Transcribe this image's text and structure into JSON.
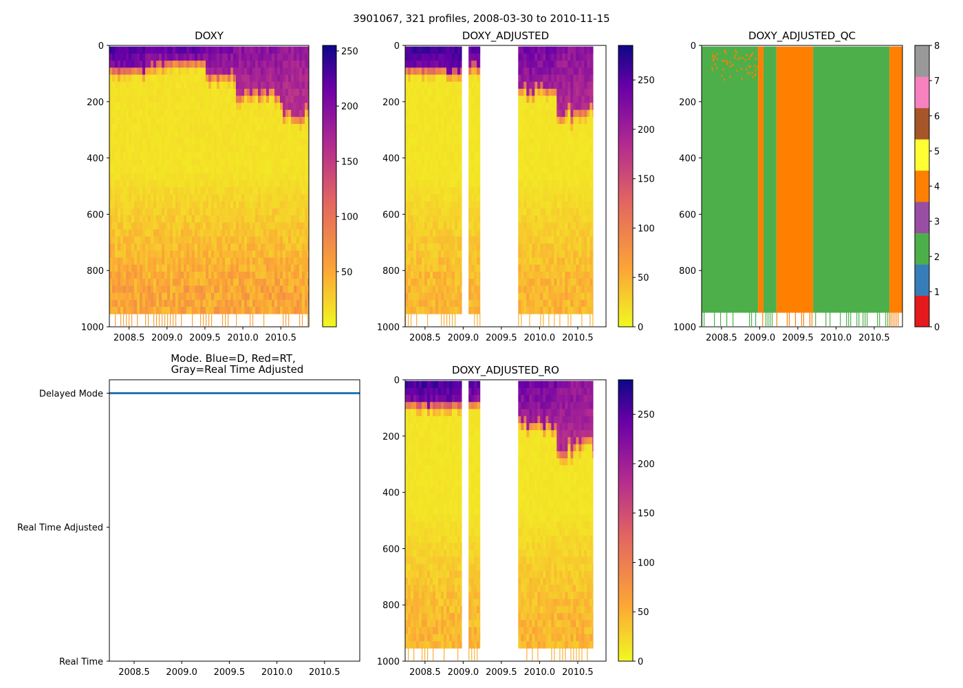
{
  "figure_title": "3901067, 321 profiles, 2008-03-30 to 2010-11-15",
  "colors": {
    "plasma": [
      "#f0f921",
      "#fca636",
      "#e16462",
      "#b12a90",
      "#6a00a8",
      "#0d0887"
    ],
    "qc": [
      "#e41a1c",
      "#377eb8",
      "#4daf4a",
      "#984ea3",
      "#ff7f00",
      "#ffff33",
      "#a65628",
      "#f781bf",
      "#999999"
    ],
    "mode_line": "#1f77b4",
    "frame": "#000000"
  },
  "chart_data": [
    {
      "id": "doxy",
      "type": "heatmap",
      "title": "DOXY",
      "x_ticks": [
        "2008.5",
        "2009.0",
        "2009.5",
        "2010.0",
        "2010.5"
      ],
      "x_tick_values": [
        2008.5,
        2009.0,
        2009.5,
        2010.0,
        2010.5
      ],
      "xlim": [
        2008.24,
        2010.87
      ],
      "y_ticks": [
        "0",
        "200",
        "400",
        "600",
        "800",
        "1000"
      ],
      "ylim": [
        1000,
        0
      ],
      "colorbar_ticks": [
        "50",
        "100",
        "150",
        "200",
        "250"
      ],
      "colorbar_values": [
        50,
        100,
        150,
        200,
        250
      ],
      "clim": [
        0,
        255
      ],
      "data_segments": [
        [
          2008.24,
          2010.87
        ]
      ],
      "surface_layer": [
        [
          2008.24,
          2008.7,
          70,
          220
        ],
        [
          2008.7,
          2009.0,
          50,
          200
        ],
        [
          2009.0,
          2009.5,
          40,
          210
        ],
        [
          2009.5,
          2009.9,
          90,
          190
        ],
        [
          2009.9,
          2010.5,
          160,
          180
        ],
        [
          2010.5,
          2010.87,
          220,
          170
        ]
      ],
      "deep_value": 45,
      "bottom_depth": 950
    },
    {
      "id": "doxy_adjusted",
      "type": "heatmap",
      "title": "DOXY_ADJUSTED",
      "x_ticks": [
        "2008.5",
        "2009.0",
        "2009.5",
        "2010.0",
        "2010.5"
      ],
      "x_tick_values": [
        2008.5,
        2009.0,
        2009.5,
        2010.0,
        2010.5
      ],
      "xlim": [
        2008.24,
        2010.87
      ],
      "y_ticks": [
        "0",
        "200",
        "400",
        "600",
        "800",
        "1000"
      ],
      "ylim": [
        1000,
        0
      ],
      "colorbar_ticks": [
        "0",
        "50",
        "100",
        "150",
        "200",
        "250"
      ],
      "colorbar_values": [
        0,
        50,
        100,
        150,
        200,
        250
      ],
      "clim": [
        0,
        285
      ],
      "data_segments": [
        [
          2008.24,
          2008.98
        ],
        [
          2009.07,
          2009.22
        ],
        [
          2009.72,
          2010.7
        ]
      ],
      "surface_layer": [
        [
          2008.24,
          2008.98,
          70,
          250
        ],
        [
          2009.07,
          2009.22,
          60,
          240
        ],
        [
          2009.72,
          2010.2,
          140,
          220
        ],
        [
          2010.2,
          2010.7,
          220,
          200
        ]
      ],
      "deep_value": 40,
      "bottom_depth": 950
    },
    {
      "id": "doxy_adjusted_qc",
      "type": "heatmap",
      "title": "DOXY_ADJUSTED_QC",
      "x_ticks": [
        "2008.5",
        "2009.0",
        "2009.5",
        "2010.0",
        "2010.5"
      ],
      "x_tick_values": [
        2008.5,
        2009.0,
        2009.5,
        2010.0,
        2010.5
      ],
      "xlim": [
        2008.24,
        2010.87
      ],
      "y_ticks": [
        "0",
        "200",
        "400",
        "600",
        "800",
        "1000"
      ],
      "ylim": [
        1000,
        0
      ],
      "colorbar_ticks": [
        "0",
        "1",
        "2",
        "3",
        "4",
        "5",
        "6",
        "7",
        "8"
      ],
      "colorbar_values": [
        0,
        1,
        2,
        3,
        4,
        5,
        6,
        7,
        8
      ],
      "clim": [
        0,
        9
      ],
      "qc_segments": [
        [
          2008.24,
          2008.98,
          2
        ],
        [
          2008.98,
          2009.05,
          4
        ],
        [
          2009.05,
          2009.22,
          2
        ],
        [
          2009.22,
          2009.7,
          4
        ],
        [
          2009.7,
          2010.7,
          2
        ],
        [
          2010.7,
          2010.87,
          4
        ]
      ],
      "bottom_depth": 950
    },
    {
      "id": "mode",
      "type": "line",
      "title_lines": [
        "Mode. Blue=D, Red=RT,",
        "Gray=Real Time Adjusted"
      ],
      "x_ticks": [
        "2008.5",
        "2009.0",
        "2009.5",
        "2010.0",
        "2010.5"
      ],
      "x_tick_values": [
        2008.5,
        2009.0,
        2009.5,
        2010.0,
        2010.5
      ],
      "xlim": [
        2008.24,
        2010.87
      ],
      "y_ticks": [
        "Delayed Mode",
        "Real Time Adjusted",
        "Real Time"
      ],
      "y_tick_values": [
        2,
        1,
        0
      ],
      "ylim": [
        0,
        2.1
      ],
      "series": [
        {
          "name": "Delayed Mode",
          "x": [
            2008.24,
            2010.87
          ],
          "y": [
            2,
            2
          ]
        }
      ]
    },
    {
      "id": "doxy_adjusted_ro",
      "type": "heatmap",
      "title": "DOXY_ADJUSTED_RO",
      "x_ticks": [
        "2008.5",
        "2009.0",
        "2009.5",
        "2010.0",
        "2010.5"
      ],
      "x_tick_values": [
        2008.5,
        2009.0,
        2009.5,
        2010.0,
        2010.5
      ],
      "xlim": [
        2008.24,
        2010.87
      ],
      "y_ticks": [
        "0",
        "200",
        "400",
        "600",
        "800",
        "1000"
      ],
      "ylim": [
        1000,
        0
      ],
      "colorbar_ticks": [
        "0",
        "50",
        "100",
        "150",
        "200",
        "250"
      ],
      "colorbar_values": [
        0,
        50,
        100,
        150,
        200,
        250
      ],
      "clim": [
        0,
        285
      ],
      "data_segments": [
        [
          2008.24,
          2008.98
        ],
        [
          2009.07,
          2009.22
        ],
        [
          2009.72,
          2010.7
        ]
      ],
      "surface_layer": [
        [
          2008.24,
          2008.98,
          70,
          250
        ],
        [
          2009.07,
          2009.22,
          60,
          240
        ],
        [
          2009.72,
          2010.2,
          140,
          220
        ],
        [
          2010.2,
          2010.7,
          220,
          200
        ]
      ],
      "deep_value": 40,
      "bottom_depth": 950
    }
  ]
}
